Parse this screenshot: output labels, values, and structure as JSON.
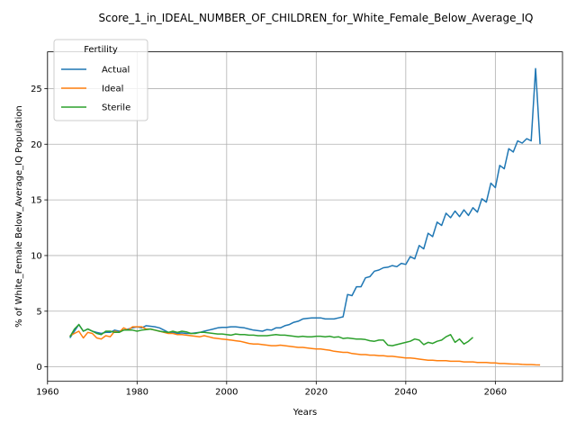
{
  "chart_data": {
    "type": "line",
    "title": "Score_1_in_IDEAL_NUMBER_OF_CHILDREN_for_White_Female_Below_Average_IQ",
    "xlabel": "Years",
    "ylabel": "% of White_Female Below_Average_IQ Population",
    "xlim": [
      1960,
      2075
    ],
    "ylim": [
      -1.3,
      28.3
    ],
    "xticks": [
      1960,
      1980,
      2000,
      2020,
      2040,
      2060
    ],
    "yticks": [
      0,
      5,
      10,
      15,
      20,
      25
    ],
    "grid": true,
    "legend": {
      "title": "Fertility",
      "placement": "upper-left"
    },
    "series": [
      {
        "name": "Actual",
        "color": "#1f77b4",
        "points": [
          [
            1965,
            2.6
          ],
          [
            1966,
            3.2
          ],
          [
            1967,
            3.8
          ],
          [
            1968,
            3.2
          ],
          [
            1969,
            3.4
          ],
          [
            1970,
            3.2
          ],
          [
            1971,
            3.1
          ],
          [
            1972,
            3.0
          ],
          [
            1973,
            3.1
          ],
          [
            1974,
            3.1
          ],
          [
            1975,
            3.3
          ],
          [
            1976,
            3.2
          ],
          [
            1977,
            3.3
          ],
          [
            1978,
            3.4
          ],
          [
            1979,
            3.5
          ],
          [
            1980,
            3.6
          ],
          [
            1981,
            3.5
          ],
          [
            1982,
            3.7
          ],
          [
            1983,
            3.65
          ],
          [
            1984,
            3.6
          ],
          [
            1985,
            3.5
          ],
          [
            1986,
            3.3
          ],
          [
            1987,
            3.1
          ],
          [
            1988,
            3.1
          ],
          [
            1989,
            3.0
          ],
          [
            1990,
            3.05
          ],
          [
            1991,
            3.0
          ],
          [
            1992,
            3.0
          ],
          [
            1993,
            3.05
          ],
          [
            1994,
            3.1
          ],
          [
            1995,
            3.2
          ],
          [
            1996,
            3.3
          ],
          [
            1997,
            3.4
          ],
          [
            1998,
            3.5
          ],
          [
            1999,
            3.55
          ],
          [
            2000,
            3.55
          ],
          [
            2001,
            3.6
          ],
          [
            2002,
            3.6
          ],
          [
            2003,
            3.55
          ],
          [
            2004,
            3.5
          ],
          [
            2005,
            3.4
          ],
          [
            2006,
            3.3
          ],
          [
            2007,
            3.25
          ],
          [
            2008,
            3.2
          ],
          [
            2009,
            3.35
          ],
          [
            2010,
            3.3
          ],
          [
            2011,
            3.5
          ],
          [
            2012,
            3.5
          ],
          [
            2013,
            3.7
          ],
          [
            2014,
            3.8
          ],
          [
            2015,
            4.0
          ],
          [
            2016,
            4.1
          ],
          [
            2017,
            4.3
          ],
          [
            2018,
            4.35
          ],
          [
            2019,
            4.4
          ],
          [
            2020,
            4.4
          ],
          [
            2021,
            4.4
          ],
          [
            2022,
            4.3
          ],
          [
            2023,
            4.3
          ],
          [
            2024,
            4.3
          ],
          [
            2025,
            4.4
          ],
          [
            2026,
            4.5
          ],
          [
            2027,
            6.5
          ],
          [
            2028,
            6.4
          ],
          [
            2029,
            7.2
          ],
          [
            2030,
            7.2
          ],
          [
            2031,
            8.0
          ],
          [
            2032,
            8.1
          ],
          [
            2033,
            8.6
          ],
          [
            2034,
            8.7
          ],
          [
            2035,
            8.9
          ],
          [
            2036,
            8.95
          ],
          [
            2037,
            9.1
          ],
          [
            2038,
            9.0
          ],
          [
            2039,
            9.3
          ],
          [
            2040,
            9.2
          ],
          [
            2041,
            9.9
          ],
          [
            2042,
            9.7
          ],
          [
            2043,
            10.9
          ],
          [
            2044,
            10.6
          ],
          [
            2045,
            12.0
          ],
          [
            2046,
            11.7
          ],
          [
            2047,
            13.0
          ],
          [
            2048,
            12.7
          ],
          [
            2049,
            13.8
          ],
          [
            2050,
            13.4
          ],
          [
            2051,
            14.0
          ],
          [
            2052,
            13.5
          ],
          [
            2053,
            14.1
          ],
          [
            2054,
            13.6
          ],
          [
            2055,
            14.3
          ],
          [
            2056,
            13.9
          ],
          [
            2057,
            15.1
          ],
          [
            2058,
            14.8
          ],
          [
            2059,
            16.5
          ],
          [
            2060,
            16.1
          ],
          [
            2061,
            18.1
          ],
          [
            2062,
            17.8
          ],
          [
            2063,
            19.6
          ],
          [
            2064,
            19.3
          ],
          [
            2065,
            20.3
          ],
          [
            2066,
            20.1
          ],
          [
            2067,
            20.5
          ],
          [
            2068,
            20.3
          ],
          [
            2069,
            26.8
          ],
          [
            2070,
            20.0
          ]
        ]
      },
      {
        "name": "Ideal",
        "color": "#ff7f0e",
        "points": [
          [
            1965,
            2.8
          ],
          [
            1966,
            3.0
          ],
          [
            1967,
            3.2
          ],
          [
            1968,
            2.6
          ],
          [
            1969,
            3.1
          ],
          [
            1970,
            3.0
          ],
          [
            1971,
            2.6
          ],
          [
            1972,
            2.5
          ],
          [
            1973,
            2.8
          ],
          [
            1974,
            2.7
          ],
          [
            1975,
            3.2
          ],
          [
            1976,
            3.1
          ],
          [
            1977,
            3.5
          ],
          [
            1978,
            3.3
          ],
          [
            1979,
            3.6
          ],
          [
            1980,
            3.6
          ],
          [
            1981,
            3.6
          ],
          [
            1982,
            3.4
          ],
          [
            1983,
            3.4
          ],
          [
            1984,
            3.3
          ],
          [
            1985,
            3.2
          ],
          [
            1986,
            3.1
          ],
          [
            1987,
            3.0
          ],
          [
            1988,
            3.0
          ],
          [
            1989,
            2.9
          ],
          [
            1990,
            2.9
          ],
          [
            1991,
            2.85
          ],
          [
            1992,
            2.8
          ],
          [
            1993,
            2.75
          ],
          [
            1994,
            2.7
          ],
          [
            1995,
            2.8
          ],
          [
            1996,
            2.7
          ],
          [
            1997,
            2.6
          ],
          [
            1998,
            2.55
          ],
          [
            1999,
            2.5
          ],
          [
            2000,
            2.45
          ],
          [
            2001,
            2.4
          ],
          [
            2002,
            2.35
          ],
          [
            2003,
            2.3
          ],
          [
            2004,
            2.2
          ],
          [
            2005,
            2.1
          ],
          [
            2006,
            2.05
          ],
          [
            2007,
            2.05
          ],
          [
            2008,
            2.0
          ],
          [
            2009,
            1.95
          ],
          [
            2010,
            1.9
          ],
          [
            2011,
            1.9
          ],
          [
            2012,
            1.95
          ],
          [
            2013,
            1.9
          ],
          [
            2014,
            1.85
          ],
          [
            2015,
            1.8
          ],
          [
            2016,
            1.75
          ],
          [
            2017,
            1.75
          ],
          [
            2018,
            1.7
          ],
          [
            2019,
            1.65
          ],
          [
            2020,
            1.6
          ],
          [
            2021,
            1.6
          ],
          [
            2022,
            1.55
          ],
          [
            2023,
            1.5
          ],
          [
            2024,
            1.4
          ],
          [
            2025,
            1.35
          ],
          [
            2026,
            1.3
          ],
          [
            2027,
            1.3
          ],
          [
            2028,
            1.2
          ],
          [
            2029,
            1.15
          ],
          [
            2030,
            1.1
          ],
          [
            2031,
            1.1
          ],
          [
            2032,
            1.05
          ],
          [
            2033,
            1.05
          ],
          [
            2034,
            1.0
          ],
          [
            2035,
            1.0
          ],
          [
            2036,
            0.95
          ],
          [
            2037,
            0.95
          ],
          [
            2038,
            0.9
          ],
          [
            2039,
            0.85
          ],
          [
            2040,
            0.8
          ],
          [
            2041,
            0.8
          ],
          [
            2042,
            0.75
          ],
          [
            2043,
            0.7
          ],
          [
            2044,
            0.65
          ],
          [
            2045,
            0.6
          ],
          [
            2046,
            0.6
          ],
          [
            2047,
            0.55
          ],
          [
            2048,
            0.55
          ],
          [
            2049,
            0.55
          ],
          [
            2050,
            0.5
          ],
          [
            2051,
            0.5
          ],
          [
            2052,
            0.5
          ],
          [
            2053,
            0.45
          ],
          [
            2054,
            0.45
          ],
          [
            2055,
            0.45
          ],
          [
            2056,
            0.4
          ],
          [
            2057,
            0.4
          ],
          [
            2058,
            0.4
          ],
          [
            2059,
            0.35
          ],
          [
            2060,
            0.35
          ],
          [
            2061,
            0.3
          ],
          [
            2062,
            0.3
          ],
          [
            2063,
            0.28
          ],
          [
            2064,
            0.25
          ],
          [
            2065,
            0.25
          ],
          [
            2066,
            0.22
          ],
          [
            2067,
            0.2
          ],
          [
            2068,
            0.2
          ],
          [
            2069,
            0.18
          ],
          [
            2070,
            0.17
          ]
        ]
      },
      {
        "name": "Sterile",
        "color": "#2ca02c",
        "points": [
          [
            1965,
            2.7
          ],
          [
            1966,
            3.4
          ],
          [
            1967,
            3.8
          ],
          [
            1968,
            3.2
          ],
          [
            1969,
            3.4
          ],
          [
            1970,
            3.2
          ],
          [
            1971,
            3.0
          ],
          [
            1972,
            2.9
          ],
          [
            1973,
            3.2
          ],
          [
            1974,
            3.2
          ],
          [
            1975,
            3.1
          ],
          [
            1976,
            3.1
          ],
          [
            1977,
            3.3
          ],
          [
            1978,
            3.3
          ],
          [
            1979,
            3.3
          ],
          [
            1980,
            3.2
          ],
          [
            1981,
            3.3
          ],
          [
            1982,
            3.35
          ],
          [
            1983,
            3.4
          ],
          [
            1984,
            3.3
          ],
          [
            1985,
            3.2
          ],
          [
            1986,
            3.15
          ],
          [
            1987,
            3.1
          ],
          [
            1988,
            3.2
          ],
          [
            1989,
            3.1
          ],
          [
            1990,
            3.2
          ],
          [
            1991,
            3.15
          ],
          [
            1992,
            3.0
          ],
          [
            1993,
            3.0
          ],
          [
            1994,
            3.1
          ],
          [
            1995,
            3.1
          ],
          [
            1996,
            3.05
          ],
          [
            1997,
            3.0
          ],
          [
            1998,
            2.95
          ],
          [
            1999,
            2.95
          ],
          [
            2000,
            2.9
          ],
          [
            2001,
            2.85
          ],
          [
            2002,
            2.95
          ],
          [
            2003,
            2.9
          ],
          [
            2004,
            2.9
          ],
          [
            2005,
            2.85
          ],
          [
            2006,
            2.85
          ],
          [
            2007,
            2.8
          ],
          [
            2008,
            2.8
          ],
          [
            2009,
            2.8
          ],
          [
            2010,
            2.85
          ],
          [
            2011,
            2.9
          ],
          [
            2012,
            2.85
          ],
          [
            2013,
            2.85
          ],
          [
            2014,
            2.8
          ],
          [
            2015,
            2.75
          ],
          [
            2016,
            2.7
          ],
          [
            2017,
            2.75
          ],
          [
            2018,
            2.7
          ],
          [
            2019,
            2.7
          ],
          [
            2020,
            2.75
          ],
          [
            2021,
            2.75
          ],
          [
            2022,
            2.7
          ],
          [
            2023,
            2.75
          ],
          [
            2024,
            2.65
          ],
          [
            2025,
            2.7
          ],
          [
            2026,
            2.55
          ],
          [
            2027,
            2.6
          ],
          [
            2028,
            2.55
          ],
          [
            2029,
            2.5
          ],
          [
            2030,
            2.5
          ],
          [
            2031,
            2.45
          ],
          [
            2032,
            2.35
          ],
          [
            2033,
            2.3
          ],
          [
            2034,
            2.4
          ],
          [
            2035,
            2.4
          ],
          [
            2036,
            1.95
          ],
          [
            2037,
            1.9
          ],
          [
            2038,
            2.0
          ],
          [
            2039,
            2.1
          ],
          [
            2040,
            2.2
          ],
          [
            2041,
            2.3
          ],
          [
            2042,
            2.5
          ],
          [
            2043,
            2.4
          ],
          [
            2044,
            2.0
          ],
          [
            2045,
            2.2
          ],
          [
            2046,
            2.1
          ],
          [
            2047,
            2.3
          ],
          [
            2048,
            2.4
          ],
          [
            2049,
            2.7
          ],
          [
            2050,
            2.9
          ],
          [
            2051,
            2.2
          ],
          [
            2052,
            2.5
          ],
          [
            2053,
            2.05
          ],
          [
            2054,
            2.3
          ],
          [
            2055,
            2.65
          ]
        ]
      }
    ]
  }
}
